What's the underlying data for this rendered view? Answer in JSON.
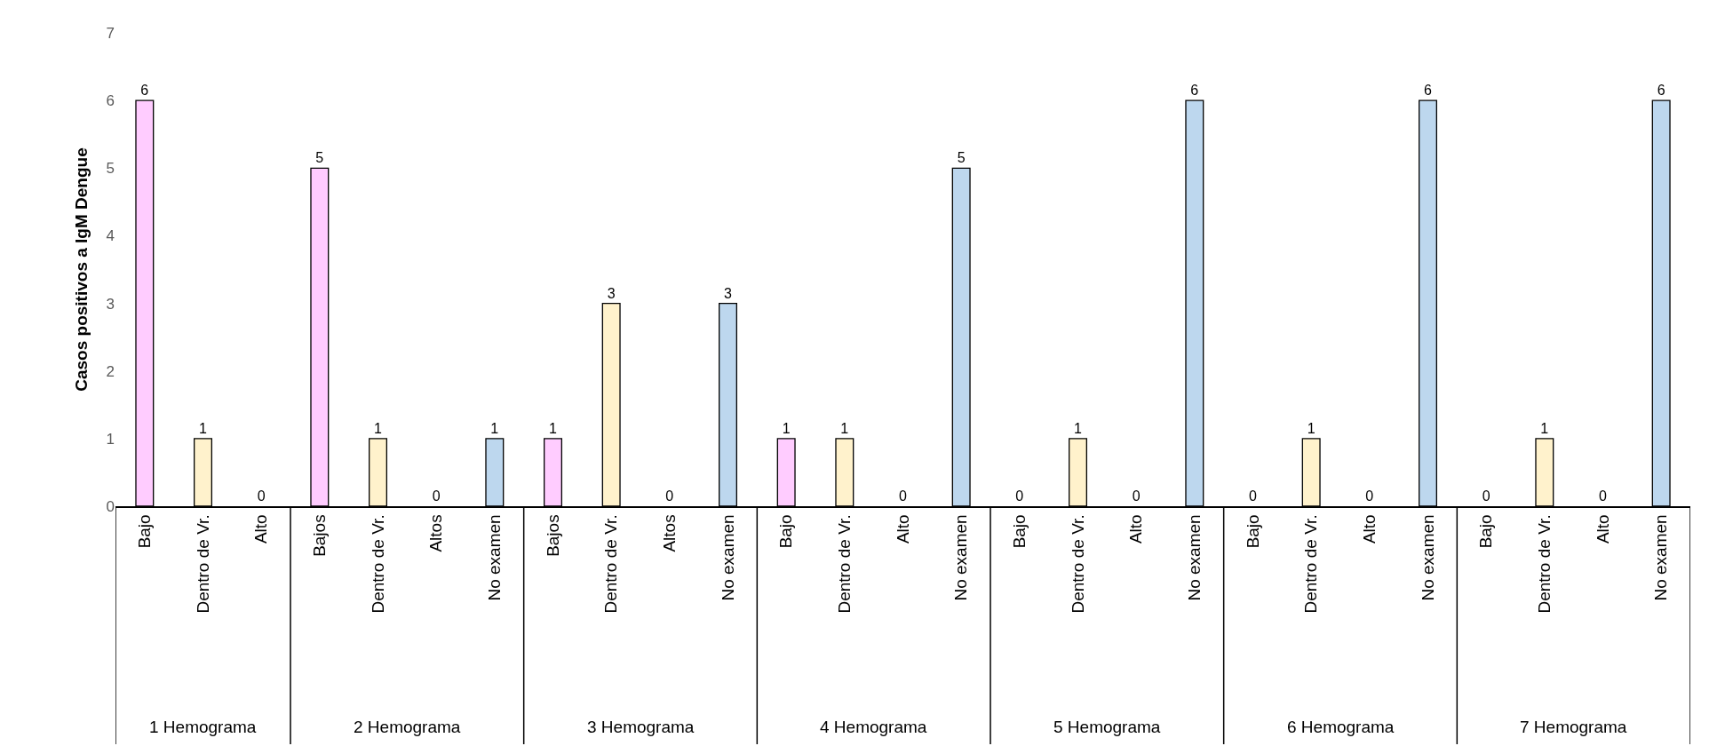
{
  "chart_data": {
    "type": "bar",
    "ylabel": "Casos positivos a IgM Dengue",
    "categories": [
      "Bajo",
      "Dentro de Vr.",
      "Alto",
      "Bajos",
      "Dentro de Vr.",
      "Altos",
      "No examen",
      "Bajos",
      "Dentro de Vr.",
      "Altos",
      "No examen",
      "Bajo",
      "Dentro de Vr.",
      "Alto",
      "No examen",
      "Bajo",
      "Dentro de Vr.",
      "Alto",
      "No examen",
      "Bajo",
      "Dentro de Vr.",
      "Alto",
      "No examen",
      "Bajo",
      "Dentro de Vr.",
      "Alto",
      "No examen"
    ],
    "values": [
      6,
      1,
      0,
      5,
      1,
      0,
      1,
      1,
      3,
      0,
      3,
      1,
      1,
      0,
      5,
      0,
      1,
      0,
      6,
      0,
      1,
      0,
      6,
      0,
      1,
      0,
      6
    ],
    "colors": [
      "#ffccff",
      "#fff2cc",
      "#ffffff",
      "#ffccff",
      "#fff2cc",
      "#ffffff",
      "#bdd7ee",
      "#ffccff",
      "#fff2cc",
      "#ffffff",
      "#bdd7ee",
      "#ffccff",
      "#fff2cc",
      "#ffffff",
      "#bdd7ee",
      "#ffccff",
      "#fff2cc",
      "#ffffff",
      "#bdd7ee",
      "#ffccff",
      "#fff2cc",
      "#ffffff",
      "#bdd7ee",
      "#ffccff",
      "#fff2cc",
      "#ffffff",
      "#bdd7ee"
    ],
    "annotations": [
      "1 Hemograma",
      "2 Hemograma",
      "3 Hemograma",
      "4 Hemograma",
      "5 Hemograma",
      "6 Hemograma",
      "7 Hemograma"
    ],
    "ylim": [
      0,
      7
    ],
    "yticks": [
      0,
      1,
      2,
      3,
      4,
      5,
      6,
      7
    ],
    "data_labels": true
  }
}
